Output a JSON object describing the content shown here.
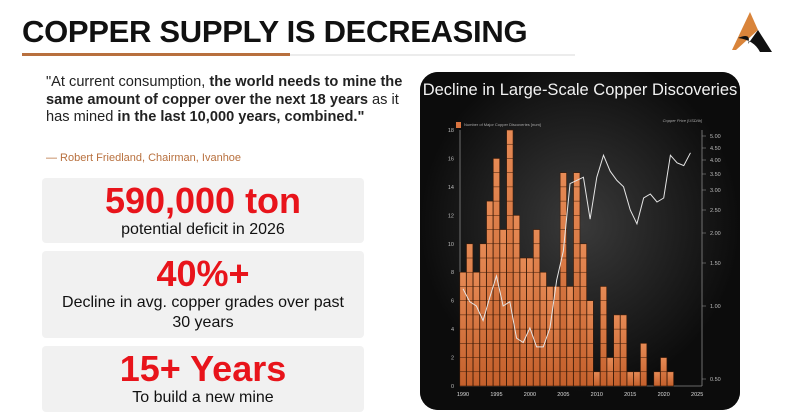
{
  "header": {
    "title": "COPPER SUPPLY IS DECREASING"
  },
  "colors": {
    "accent_copper": "#b8703e",
    "stat_red": "#e8141b",
    "bar": "#d9733f",
    "price_line": "#e6e6e6"
  },
  "quote": {
    "parts": [
      {
        "text": "\"At current consumption, ",
        "bold": false
      },
      {
        "text": "the world needs to mine the same amount of copper over the next 18 years",
        "bold": true
      },
      {
        "text": " as it has mined ",
        "bold": false
      },
      {
        "text": "in the last 10,000 years, combined.\"",
        "bold": true
      }
    ],
    "attribution": "— Robert Friedland, Chairman, Ivanhoe"
  },
  "stats": [
    {
      "value": "590,000 ton",
      "label": "potential deficit in 2026"
    },
    {
      "value": "40%+",
      "label": "Decline in avg. copper grades over past 30 years"
    },
    {
      "value": "15+ Years",
      "label": "To build a new mine"
    }
  ],
  "chart_data": {
    "type": "bar",
    "title": "Decline in Large-Scale Copper Discoveries",
    "legend_bar": "Number of Major Copper Discoveries [num]",
    "legend_line": "Copper Price [USD/lb]",
    "x_ticks": [
      "1990",
      "1995",
      "2000",
      "2005",
      "2010",
      "2015",
      "2020",
      "2025"
    ],
    "y_left_ticks": [
      "0",
      "2",
      "4",
      "6",
      "8",
      "10",
      "12",
      "14",
      "16",
      "18"
    ],
    "y_left_lim": [
      0,
      18
    ],
    "y_right_ticks": [
      "5.00",
      "4.50",
      "4.00",
      "3.50",
      "3.00",
      "2.50",
      "2.00",
      "1.50",
      "1.00",
      "0.50"
    ],
    "categories": [
      1990,
      1991,
      1992,
      1993,
      1994,
      1995,
      1996,
      1997,
      1998,
      1999,
      2000,
      2001,
      2002,
      2003,
      2004,
      2005,
      2006,
      2007,
      2008,
      2009,
      2010,
      2011,
      2012,
      2013,
      2014,
      2015,
      2016,
      2017,
      2018,
      2019,
      2020,
      2021
    ],
    "series": [
      {
        "name": "Number of Major Copper Discoveries",
        "type": "bar",
        "values": [
          8,
          10,
          8,
          10,
          13,
          16,
          11,
          18,
          12,
          9,
          9,
          11,
          8,
          7,
          7,
          15,
          7,
          15,
          10,
          6,
          1,
          7,
          2,
          5,
          5,
          1,
          1,
          3,
          0,
          1,
          2,
          1
        ]
      },
      {
        "name": "Copper Price",
        "type": "line",
        "x": [
          1990,
          1991,
          1992,
          1993,
          1994,
          1995,
          1996,
          1997,
          1998,
          1999,
          2000,
          2001,
          2002,
          2003,
          2004,
          2005,
          2006,
          2007,
          2008,
          2009,
          2010,
          2011,
          2012,
          2013,
          2014,
          2015,
          2016,
          2017,
          2018,
          2019,
          2020,
          2021,
          2022,
          2023,
          2024
        ],
        "values": [
          1.2,
          1.05,
          1.0,
          0.9,
          1.1,
          1.35,
          1.0,
          1.05,
          0.78,
          0.75,
          0.85,
          0.72,
          0.72,
          0.85,
          1.3,
          1.7,
          3.2,
          3.3,
          3.4,
          2.3,
          3.4,
          4.2,
          3.6,
          3.3,
          3.1,
          2.5,
          2.2,
          2.8,
          2.9,
          2.7,
          2.8,
          4.2,
          3.9,
          3.8,
          4.3
        ]
      }
    ],
    "grid": false
  }
}
